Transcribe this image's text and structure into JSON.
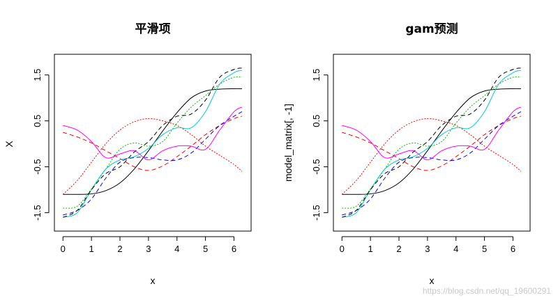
{
  "chart_data": [
    {
      "type": "line",
      "title": "平滑项",
      "xlabel": "x",
      "ylabel": "X",
      "xlim": [
        -0.3,
        6.6
      ],
      "ylim": [
        -1.9,
        1.95
      ],
      "xticks": [
        "0",
        "1",
        "2",
        "3",
        "4",
        "5",
        "6"
      ],
      "yticks": [
        "-1.5",
        "-0.5",
        "0.5",
        "1.5"
      ],
      "x": [
        0,
        0.5,
        1.0,
        1.5,
        2.0,
        2.5,
        3.0,
        3.5,
        4.0,
        4.5,
        5.0,
        5.5,
        6.0,
        6.28
      ],
      "series": [
        {
          "color": "#000000",
          "dash": "solid",
          "values": [
            -1.1,
            -1.1,
            -1.09,
            -1.02,
            -0.85,
            -0.55,
            -0.15,
            0.28,
            0.68,
            1.0,
            1.15,
            1.19,
            1.2,
            1.2
          ]
        },
        {
          "color": "#ff0000",
          "dash": "dashed",
          "values": [
            0.25,
            0.15,
            0.02,
            -0.15,
            -0.32,
            -0.5,
            -0.58,
            -0.48,
            -0.28,
            -0.05,
            0.2,
            0.4,
            0.55,
            0.6
          ]
        },
        {
          "color": "#ff0000",
          "dash": "dotted",
          "values": [
            -1.1,
            -0.8,
            -0.4,
            0.0,
            0.3,
            0.48,
            0.55,
            0.5,
            0.4,
            0.2,
            -0.05,
            -0.25,
            -0.45,
            -0.6
          ]
        },
        {
          "color": "#00bb00",
          "dash": "dotted",
          "values": [
            -1.4,
            -1.36,
            -0.98,
            -0.55,
            -0.12,
            0.02,
            -0.05,
            0.05,
            0.45,
            0.8,
            1.05,
            1.3,
            1.45,
            1.45
          ]
        },
        {
          "color": "#0000ff",
          "dash": "dashed",
          "values": [
            -1.55,
            -1.45,
            -1.2,
            -0.75,
            -0.4,
            -0.3,
            -0.3,
            -0.35,
            -0.35,
            -0.2,
            0.1,
            0.4,
            0.6,
            0.7
          ]
        },
        {
          "color": "#00cccc",
          "dash": "solid",
          "values": [
            -1.6,
            -1.5,
            -1.0,
            -0.55,
            -0.35,
            -0.28,
            -0.1,
            0.2,
            0.35,
            0.35,
            0.7,
            1.3,
            1.55,
            1.6
          ]
        },
        {
          "color": "#ff00ff",
          "dash": "solid",
          "values": [
            0.4,
            0.3,
            0.05,
            -0.3,
            -0.22,
            -0.15,
            -0.35,
            -0.15,
            -0.05,
            -0.05,
            -0.12,
            0.3,
            0.7,
            0.8
          ]
        },
        {
          "color": "#000000",
          "dash": "dashed",
          "values": [
            -1.6,
            -1.45,
            -1.0,
            -0.65,
            -0.5,
            -0.18,
            0.05,
            0.4,
            0.6,
            0.65,
            0.95,
            1.45,
            1.62,
            1.65
          ]
        }
      ]
    },
    {
      "type": "line",
      "title": "gam预测",
      "xlabel": "x",
      "ylabel": "model_matrix[, -1]",
      "xlim": [
        -0.3,
        6.6
      ],
      "ylim": [
        -1.9,
        1.95
      ],
      "xticks": [
        "0",
        "1",
        "2",
        "3",
        "4",
        "5",
        "6"
      ],
      "yticks": [
        "-1.5",
        "-0.5",
        "0.5",
        "1.5"
      ],
      "x": [
        0,
        0.5,
        1.0,
        1.5,
        2.0,
        2.5,
        3.0,
        3.5,
        4.0,
        4.5,
        5.0,
        5.5,
        6.0,
        6.28
      ],
      "series": [
        {
          "color": "#000000",
          "dash": "solid",
          "values": [
            -1.1,
            -1.1,
            -1.09,
            -1.02,
            -0.85,
            -0.55,
            -0.15,
            0.28,
            0.68,
            1.0,
            1.15,
            1.19,
            1.2,
            1.2
          ]
        },
        {
          "color": "#ff0000",
          "dash": "dashed",
          "values": [
            0.25,
            0.15,
            0.02,
            -0.15,
            -0.32,
            -0.5,
            -0.58,
            -0.48,
            -0.28,
            -0.05,
            0.2,
            0.4,
            0.55,
            0.6
          ]
        },
        {
          "color": "#ff0000",
          "dash": "dotted",
          "values": [
            -1.1,
            -0.8,
            -0.4,
            0.0,
            0.3,
            0.48,
            0.55,
            0.5,
            0.4,
            0.2,
            -0.05,
            -0.25,
            -0.45,
            -0.6
          ]
        },
        {
          "color": "#00bb00",
          "dash": "dotted",
          "values": [
            -1.4,
            -1.36,
            -0.98,
            -0.55,
            -0.12,
            0.02,
            -0.05,
            0.05,
            0.45,
            0.8,
            1.05,
            1.3,
            1.45,
            1.45
          ]
        },
        {
          "color": "#0000ff",
          "dash": "dashed",
          "values": [
            -1.55,
            -1.45,
            -1.2,
            -0.75,
            -0.4,
            -0.3,
            -0.3,
            -0.35,
            -0.35,
            -0.2,
            0.1,
            0.4,
            0.6,
            0.7
          ]
        },
        {
          "color": "#00cccc",
          "dash": "solid",
          "values": [
            -1.6,
            -1.5,
            -1.0,
            -0.55,
            -0.35,
            -0.28,
            -0.1,
            0.2,
            0.35,
            0.35,
            0.7,
            1.3,
            1.55,
            1.6
          ]
        },
        {
          "color": "#ff00ff",
          "dash": "solid",
          "values": [
            0.4,
            0.3,
            0.05,
            -0.3,
            -0.22,
            -0.15,
            -0.35,
            -0.15,
            -0.05,
            -0.05,
            -0.12,
            0.3,
            0.7,
            0.8
          ]
        },
        {
          "color": "#000000",
          "dash": "dashed",
          "values": [
            -1.6,
            -1.45,
            -1.0,
            -0.65,
            -0.5,
            -0.18,
            0.05,
            0.4,
            0.6,
            0.65,
            0.95,
            1.45,
            1.62,
            1.65
          ]
        }
      ]
    }
  ],
  "watermark": "https://blog.csdn.net/qq_19600291"
}
